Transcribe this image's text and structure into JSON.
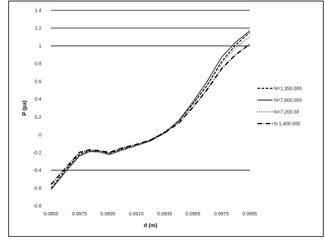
{
  "chart_data": {
    "type": "line",
    "title": "",
    "xlabel": "d (m)",
    "ylabel": "P (pa)",
    "xlim": [
      0.0855,
      0.0995
    ],
    "ylim": [
      -0.8,
      1.4
    ],
    "x_ticks": [
      "0.0855",
      "0.0875",
      "0.0895",
      "0.0915",
      "0.0935",
      "0.0955",
      "0.0975",
      "0.0995"
    ],
    "y_ticks": [
      "1.4",
      "1.2",
      "1",
      "0.8",
      "0.6",
      "0.4",
      "0.2",
      "0",
      "-0.2",
      "-0.4",
      "-0.6",
      "-0.8"
    ],
    "gridlines_y": [
      1.4,
      1.2,
      1.0,
      -0.4
    ],
    "legend_position": "right",
    "series": [
      {
        "name": "N=1,350,000",
        "style": "dash",
        "color": "#111111",
        "x": [
          0.0855,
          0.0865,
          0.0875,
          0.0882,
          0.0889,
          0.0896,
          0.0905,
          0.0915,
          0.0925,
          0.0935,
          0.0945,
          0.0955,
          0.0965,
          0.0975,
          0.0985,
          0.0995
        ],
        "y": [
          -0.6,
          -0.4,
          -0.22,
          -0.18,
          -0.19,
          -0.21,
          -0.16,
          -0.12,
          -0.06,
          0.03,
          0.15,
          0.35,
          0.56,
          0.82,
          1.01,
          1.15
        ]
      },
      {
        "name": "N=7,800,000",
        "style": "solid",
        "color": "#444444",
        "x": [
          0.0855,
          0.0865,
          0.0875,
          0.0882,
          0.0889,
          0.0896,
          0.0905,
          0.0915,
          0.0925,
          0.0935,
          0.0945,
          0.0955,
          0.0965,
          0.0975,
          0.0985,
          0.0995
        ],
        "y": [
          -0.62,
          -0.42,
          -0.24,
          -0.19,
          -0.19,
          -0.22,
          -0.17,
          -0.12,
          -0.07,
          0.02,
          0.16,
          0.37,
          0.6,
          0.87,
          1.04,
          1.17
        ]
      },
      {
        "name": "N=7,200,00",
        "style": "dot",
        "color": "#333333",
        "x": [
          0.0855,
          0.0865,
          0.0875,
          0.0882,
          0.0889,
          0.0896,
          0.0905,
          0.0915,
          0.0925,
          0.0935,
          0.0945,
          0.0955,
          0.0965,
          0.0975,
          0.0985,
          0.0995
        ],
        "y": [
          -0.6,
          -0.41,
          -0.23,
          -0.19,
          -0.2,
          -0.23,
          -0.18,
          -0.13,
          -0.07,
          0.02,
          0.15,
          0.34,
          0.55,
          0.8,
          0.98,
          1.1
        ]
      },
      {
        "name": "N 1,400,000",
        "style": "dashdot",
        "color": "#000000",
        "x": [
          0.0855,
          0.0865,
          0.0875,
          0.0882,
          0.0889,
          0.0896,
          0.0905,
          0.0915,
          0.0925,
          0.0935,
          0.0945,
          0.0955,
          0.0965,
          0.0975,
          0.0985,
          0.0995
        ],
        "y": [
          -0.56,
          -0.38,
          -0.2,
          -0.17,
          -0.18,
          -0.2,
          -0.15,
          -0.11,
          -0.06,
          0.02,
          0.13,
          0.31,
          0.51,
          0.74,
          0.9,
          1.02
        ]
      }
    ]
  }
}
